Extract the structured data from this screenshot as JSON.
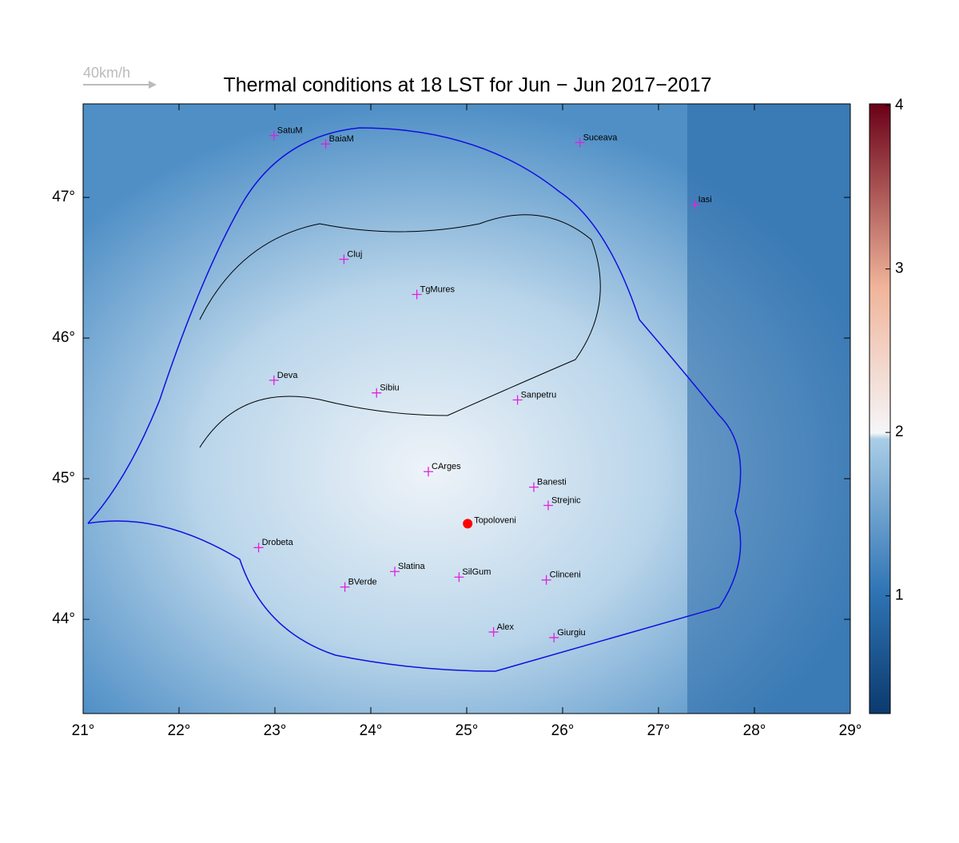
{
  "chart_data": {
    "type": "map",
    "title": "Thermal conditions at 18 LST for Jun − Jun  2017−2017",
    "wind_scale_label": "40km/h",
    "xlim": [
      21,
      29
    ],
    "ylim": [
      43.33,
      47.665
    ],
    "xticks": [
      {
        "value": 21,
        "label": "21°"
      },
      {
        "value": 22,
        "label": "22°"
      },
      {
        "value": 23,
        "label": "23°"
      },
      {
        "value": 24,
        "label": "24°"
      },
      {
        "value": 25,
        "label": "25°"
      },
      {
        "value": 26,
        "label": "26°"
      },
      {
        "value": 27,
        "label": "27°"
      },
      {
        "value": 28,
        "label": "28°"
      },
      {
        "value": 29,
        "label": "29°"
      }
    ],
    "yticks": [
      {
        "value": 44,
        "label": "44°"
      },
      {
        "value": 45,
        "label": "45°"
      },
      {
        "value": 46,
        "label": "46°"
      },
      {
        "value": 47,
        "label": "47°"
      }
    ],
    "colorbar": {
      "lim": [
        0.28,
        4.01
      ],
      "ticks": [
        1,
        2,
        3,
        4
      ]
    },
    "cities": [
      {
        "name": "SatuM",
        "lon": 22.99,
        "lat": 47.44
      },
      {
        "name": "BaiaM",
        "lon": 23.53,
        "lat": 47.38
      },
      {
        "name": "Suceava",
        "lon": 26.18,
        "lat": 47.39
      },
      {
        "name": "Iasi",
        "lon": 27.38,
        "lat": 46.95
      },
      {
        "name": "Cluj",
        "lon": 23.72,
        "lat": 46.56
      },
      {
        "name": "TgMures",
        "lon": 24.48,
        "lat": 46.31
      },
      {
        "name": "Deva",
        "lon": 22.99,
        "lat": 45.7
      },
      {
        "name": "Sibiu",
        "lon": 24.06,
        "lat": 45.61
      },
      {
        "name": "Sanpetru",
        "lon": 25.53,
        "lat": 45.56
      },
      {
        "name": "CArges",
        "lon": 24.6,
        "lat": 45.05
      },
      {
        "name": "Banesti",
        "lon": 25.7,
        "lat": 44.94
      },
      {
        "name": "Strejnic",
        "lon": 25.85,
        "lat": 44.81
      },
      {
        "name": "Drobeta",
        "lon": 22.83,
        "lat": 44.51
      },
      {
        "name": "Slatina",
        "lon": 24.25,
        "lat": 44.34
      },
      {
        "name": "SilGum",
        "lon": 24.92,
        "lat": 44.3
      },
      {
        "name": "BVerde",
        "lon": 23.73,
        "lat": 44.23
      },
      {
        "name": "Clinceni",
        "lon": 25.83,
        "lat": 44.28
      },
      {
        "name": "Alex",
        "lon": 25.28,
        "lat": 43.91
      },
      {
        "name": "Giurgiu",
        "lon": 25.91,
        "lat": 43.87
      }
    ],
    "site": {
      "name": "Topoloveni",
      "lon": 25.01,
      "lat": 44.68,
      "color": "#ff0000"
    }
  }
}
